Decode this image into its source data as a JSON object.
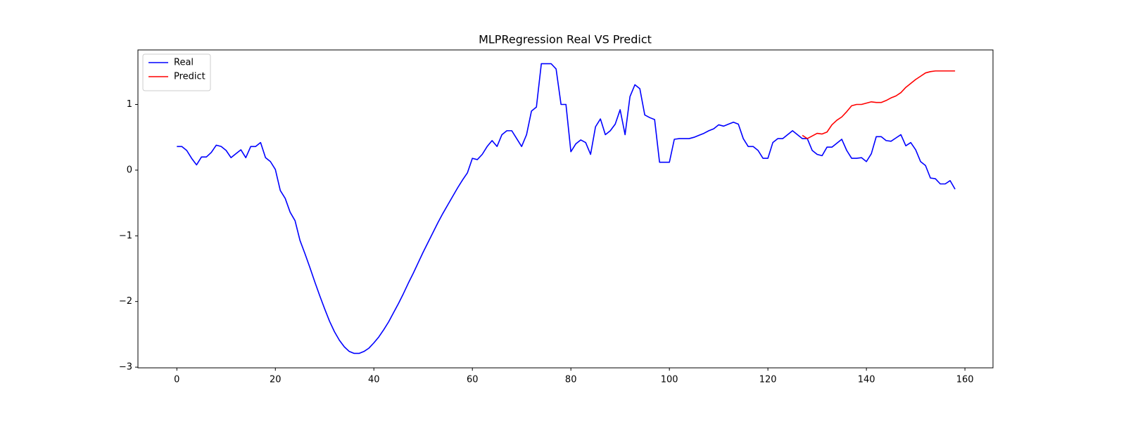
{
  "chart_data": {
    "type": "line",
    "title": "MLPRegression Real VS Predict",
    "x": [
      0,
      1,
      2,
      3,
      4,
      5,
      6,
      7,
      8,
      9,
      10,
      11,
      12,
      13,
      14,
      15,
      16,
      17,
      18,
      19,
      20,
      21,
      22,
      23,
      24,
      25,
      26,
      27,
      28,
      29,
      30,
      31,
      32,
      33,
      34,
      35,
      36,
      37,
      38,
      39,
      40,
      41,
      42,
      43,
      44,
      45,
      46,
      47,
      48,
      49,
      50,
      51,
      52,
      53,
      54,
      55,
      56,
      57,
      58,
      59,
      60,
      61,
      62,
      63,
      64,
      65,
      66,
      67,
      68,
      69,
      70,
      71,
      72,
      73,
      74,
      75,
      76,
      77,
      78,
      79,
      80,
      81,
      82,
      83,
      84,
      85,
      86,
      87,
      88,
      89,
      90,
      91,
      92,
      93,
      94,
      95,
      96,
      97,
      98,
      99,
      100,
      101,
      102,
      103,
      104,
      105,
      106,
      107,
      108,
      109,
      110,
      111,
      112,
      113,
      114,
      115,
      116,
      117,
      118,
      119,
      120,
      121,
      122,
      123,
      124,
      125,
      126,
      127,
      128,
      129,
      130,
      131,
      132,
      133,
      134,
      135,
      136,
      137,
      138,
      139,
      140,
      141,
      142,
      143,
      144,
      145,
      146,
      147,
      148,
      149,
      150,
      151,
      152,
      153,
      154,
      155,
      156,
      157,
      158
    ],
    "series": [
      {
        "name": "Real",
        "color": "#0000ff",
        "values": [
          0.36,
          0.36,
          0.3,
          0.18,
          0.08,
          0.2,
          0.2,
          0.27,
          0.38,
          0.36,
          0.3,
          0.19,
          0.25,
          0.31,
          0.19,
          0.36,
          0.36,
          0.42,
          0.19,
          0.13,
          0.01,
          -0.31,
          -0.43,
          -0.64,
          -0.77,
          -1.07,
          -1.27,
          -1.48,
          -1.7,
          -1.91,
          -2.11,
          -2.3,
          -2.46,
          -2.59,
          -2.69,
          -2.76,
          -2.79,
          -2.79,
          -2.76,
          -2.71,
          -2.63,
          -2.54,
          -2.43,
          -2.31,
          -2.17,
          -2.03,
          -1.88,
          -1.72,
          -1.57,
          -1.41,
          -1.25,
          -1.1,
          -0.95,
          -0.8,
          -0.66,
          -0.53,
          -0.4,
          -0.27,
          -0.15,
          -0.04,
          0.18,
          0.16,
          0.24,
          0.36,
          0.45,
          0.36,
          0.54,
          0.6,
          0.6,
          0.48,
          0.36,
          0.54,
          0.9,
          0.96,
          1.62,
          1.62,
          1.62,
          1.54,
          1.0,
          1.0,
          0.28,
          0.4,
          0.46,
          0.42,
          0.24,
          0.66,
          0.78,
          0.54,
          0.6,
          0.7,
          0.92,
          0.54,
          1.12,
          1.3,
          1.24,
          0.84,
          0.8,
          0.77,
          0.12,
          0.12,
          0.12,
          0.47,
          0.48,
          0.48,
          0.48,
          0.5,
          0.53,
          0.56,
          0.6,
          0.63,
          0.69,
          0.67,
          0.7,
          0.73,
          0.7,
          0.48,
          0.36,
          0.36,
          0.3,
          0.18,
          0.18,
          0.42,
          0.48,
          0.48,
          0.54,
          0.6,
          0.54,
          0.48,
          0.48,
          0.3,
          0.24,
          0.22,
          0.35,
          0.35,
          0.41,
          0.47,
          0.3,
          0.18,
          0.18,
          0.19,
          0.13,
          0.25,
          0.51,
          0.51,
          0.45,
          0.44,
          0.49,
          0.54,
          0.37,
          0.42,
          0.31,
          0.13,
          0.07,
          -0.12,
          -0.13,
          -0.21,
          -0.21,
          -0.16,
          -0.29
        ]
      },
      {
        "name": "Predict",
        "color": "#ff0000",
        "values": [
          null,
          null,
          null,
          null,
          null,
          null,
          null,
          null,
          null,
          null,
          null,
          null,
          null,
          null,
          null,
          null,
          null,
          null,
          null,
          null,
          null,
          null,
          null,
          null,
          null,
          null,
          null,
          null,
          null,
          null,
          null,
          null,
          null,
          null,
          null,
          null,
          null,
          null,
          null,
          null,
          null,
          null,
          null,
          null,
          null,
          null,
          null,
          null,
          null,
          null,
          null,
          null,
          null,
          null,
          null,
          null,
          null,
          null,
          null,
          null,
          null,
          null,
          null,
          null,
          null,
          null,
          null,
          null,
          null,
          null,
          null,
          null,
          null,
          null,
          null,
          null,
          null,
          null,
          null,
          null,
          null,
          null,
          null,
          null,
          null,
          null,
          null,
          null,
          null,
          null,
          null,
          null,
          null,
          null,
          null,
          null,
          null,
          null,
          null,
          null,
          null,
          null,
          null,
          null,
          null,
          null,
          null,
          null,
          null,
          null,
          null,
          null,
          null,
          null,
          null,
          null,
          null,
          null,
          null,
          null,
          null,
          null,
          null,
          null,
          null,
          null,
          null,
          0.53,
          0.48,
          0.52,
          0.56,
          0.55,
          0.58,
          0.69,
          0.76,
          0.81,
          0.89,
          0.98,
          1.0,
          1.0,
          1.02,
          1.04,
          1.03,
          1.03,
          1.06,
          1.1,
          1.13,
          1.18,
          1.26,
          1.32,
          1.38,
          1.43,
          1.48,
          1.5,
          1.51,
          1.51,
          1.51,
          1.51,
          1.51
        ]
      }
    ],
    "xlim": [
      -7.9,
      165.7
    ],
    "xticks": [
      0,
      20,
      40,
      60,
      80,
      100,
      120,
      140,
      160
    ],
    "ylim": [
      -3.01,
      1.83
    ],
    "yticks": [
      {
        "value": -3,
        "label": "−3"
      },
      {
        "value": -2,
        "label": "−2"
      },
      {
        "value": -1,
        "label": "−1"
      },
      0,
      1
    ],
    "grid": false,
    "legend": "upper left"
  }
}
